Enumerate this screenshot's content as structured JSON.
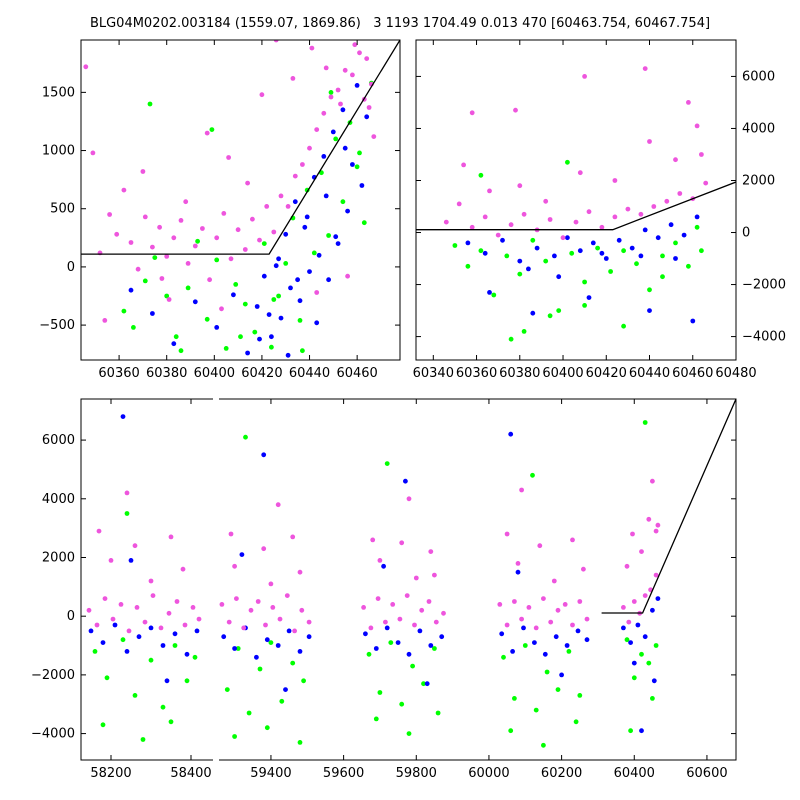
{
  "title": "BLG04M0202.003184 (1559.07, 1869.86)   3 1193 1704.49 0.013 470 [60463.754, 60467.754]",
  "colors": {
    "series_a": "#00ff00",
    "series_b": "#0000ff",
    "series_c": "#ee55dd",
    "model": "#000000"
  },
  "chart_data": [
    {
      "type": "scatter",
      "panel": "top-left zoom",
      "xlim": [
        60344,
        60478
      ],
      "ylim": [
        -800,
        1950
      ],
      "xticks": [
        60360,
        60380,
        60400,
        60420,
        60440,
        60460
      ],
      "yticks": [
        -500,
        0,
        500,
        1000,
        1500
      ],
      "ytick_side": "left",
      "model_line": {
        "x": [
          60344,
          60423,
          60478
        ],
        "y": [
          110,
          110,
          1950
        ]
      },
      "series": [
        {
          "color_key": "series_a",
          "x": [
            60362,
            60366,
            60371,
            60375,
            60380,
            60384,
            60389,
            60393,
            60397,
            60401,
            60405,
            60409,
            60413,
            60417,
            60421,
            60424,
            60427,
            60430,
            60433,
            60436,
            60439,
            60442,
            60445,
            60448,
            60451,
            60454,
            60457,
            60460,
            60463,
            60466,
            60373,
            60386,
            60399,
            60411,
            60425,
            60437,
            60449,
            60461
          ],
          "y": [
            -380,
            -520,
            -120,
            80,
            -250,
            -600,
            -180,
            220,
            -450,
            60,
            -700,
            -150,
            -320,
            -560,
            200,
            -690,
            -250,
            30,
            420,
            -460,
            660,
            120,
            810,
            270,
            1100,
            560,
            1240,
            860,
            380,
            1580,
            1400,
            -720,
            1180,
            -600,
            -280,
            -720,
            1500,
            980
          ]
        },
        {
          "color_key": "series_b",
          "x": [
            60365,
            60374,
            60383,
            60392,
            60401,
            60408,
            60414,
            60418,
            60421,
            60424,
            60426,
            60428,
            60430,
            60432,
            60434,
            60436,
            60438,
            60440,
            60442,
            60444,
            60446,
            60448,
            60450,
            60452,
            60454,
            60456,
            60458,
            60460,
            60462,
            60464,
            60419,
            60423,
            60427,
            60431,
            60435,
            60439,
            60443,
            60447,
            60451,
            60455
          ],
          "y": [
            -200,
            -400,
            -660,
            -300,
            -520,
            -240,
            -740,
            -340,
            -80,
            -600,
            10,
            -440,
            280,
            -180,
            560,
            -290,
            340,
            -40,
            770,
            100,
            950,
            -110,
            1160,
            200,
            1350,
            480,
            880,
            1560,
            700,
            1290,
            -620,
            -410,
            70,
            -760,
            -110,
            430,
            -480,
            610,
            260,
            1020
          ]
        },
        {
          "color_key": "series_c",
          "x": [
            60346,
            60349,
            60352,
            60356,
            60359,
            60362,
            60365,
            60368,
            60371,
            60374,
            60377,
            60380,
            60383,
            60386,
            60389,
            60392,
            60395,
            60398,
            60401,
            60404,
            60407,
            60410,
            60413,
            60416,
            60419,
            60422,
            60425,
            60428,
            60431,
            60434,
            60437,
            60440,
            60443,
            60446,
            60449,
            60452,
            60455,
            60458,
            60461,
            60463,
            60465,
            60467,
            60370,
            60378,
            60388,
            60397,
            60406,
            60414,
            60420,
            60426,
            60433,
            60441,
            60447,
            60453,
            60459,
            60464,
            60466,
            60354,
            60381,
            60403,
            60443,
            60456
          ],
          "y": [
            1720,
            980,
            120,
            450,
            280,
            660,
            210,
            -20,
            430,
            170,
            340,
            90,
            250,
            400,
            30,
            180,
            330,
            -110,
            250,
            460,
            70,
            320,
            150,
            410,
            230,
            520,
            300,
            610,
            520,
            780,
            880,
            1020,
            1180,
            1320,
            1460,
            1520,
            1690,
            1650,
            1840,
            1440,
            1370,
            1120,
            820,
            -100,
            560,
            1150,
            940,
            720,
            1480,
            1950,
            1620,
            1880,
            1710,
            1400,
            1910,
            1790,
            1570,
            -460,
            -280,
            -360,
            -220,
            -80
          ]
        }
      ]
    },
    {
      "type": "scatter",
      "panel": "top-right",
      "xlim": [
        60332,
        60480
      ],
      "ylim": [
        -4900,
        7400
      ],
      "xticks": [
        60340,
        60360,
        60380,
        60400,
        60420,
        60440,
        60460,
        60480
      ],
      "yticks": [
        -4000,
        -2000,
        0,
        2000,
        4000,
        6000
      ],
      "ytick_side": "right",
      "model_line": {
        "x": [
          60332,
          60423,
          60480
        ],
        "y": [
          110,
          110,
          1940
        ]
      },
      "series": [
        {
          "color_key": "series_a",
          "x": [
            60350,
            60356,
            60362,
            60368,
            60374,
            60380,
            60386,
            60392,
            60398,
            60404,
            60410,
            60416,
            60422,
            60428,
            60434,
            60440,
            60446,
            60452,
            60458,
            60464,
            60376,
            60394,
            60410,
            60428,
            60446,
            60462,
            60402,
            60382,
            60362
          ],
          "y": [
            -500,
            -1300,
            -700,
            -2400,
            -900,
            -1600,
            -300,
            -1100,
            -3000,
            -800,
            -1900,
            -600,
            -1500,
            -700,
            -1200,
            -2200,
            -900,
            -400,
            -1300,
            -700,
            -4100,
            -3200,
            -2800,
            -3600,
            -1700,
            200,
            2700,
            -3800,
            2200
          ]
        },
        {
          "color_key": "series_b",
          "x": [
            60356,
            60364,
            60372,
            60380,
            60388,
            60396,
            60402,
            60408,
            60414,
            60420,
            60426,
            60432,
            60438,
            60444,
            60450,
            60456,
            60462,
            60366,
            60384,
            60398,
            60418,
            60436,
            60452,
            60386,
            60412,
            60440,
            60460
          ],
          "y": [
            -400,
            -800,
            -300,
            -1100,
            -600,
            -900,
            -200,
            -700,
            -400,
            -1000,
            -300,
            -600,
            100,
            -200,
            300,
            -100,
            600,
            -2300,
            -1400,
            -1700,
            -800,
            -900,
            -1000,
            -3100,
            -2500,
            -3000,
            -3400
          ]
        },
        {
          "color_key": "series_c",
          "x": [
            60346,
            60352,
            60358,
            60364,
            60370,
            60376,
            60382,
            60388,
            60394,
            60400,
            60406,
            60412,
            60418,
            60424,
            60430,
            60436,
            60442,
            60448,
            60454,
            60460,
            60466,
            60354,
            60366,
            60380,
            60392,
            60408,
            60424,
            60440,
            60452,
            60462,
            60464,
            60358,
            60378,
            60410,
            60438,
            60458
          ],
          "y": [
            400,
            1100,
            200,
            600,
            -100,
            300,
            700,
            100,
            500,
            -200,
            400,
            800,
            200,
            600,
            900,
            700,
            1000,
            1200,
            1500,
            1300,
            1900,
            2600,
            1600,
            1800,
            1200,
            2300,
            2000,
            3500,
            2800,
            4100,
            3000,
            4600,
            4700,
            6000,
            6300,
            5000
          ]
        }
      ]
    },
    {
      "type": "scatter",
      "panel": "bottom full light curve",
      "xlim": [
        58125,
        60680
      ],
      "ylim": [
        -4900,
        7400
      ],
      "xticks": [
        58200,
        58400,
        59400,
        59600,
        59800,
        60000,
        60200,
        60400,
        60600
      ],
      "yticks": [
        -4000,
        -2000,
        0,
        2000,
        4000,
        6000
      ],
      "ytick_side": "left",
      "seasons": [
        [
          58145,
          58420
        ],
        [
          59265,
          59510
        ],
        [
          59655,
          59875
        ],
        [
          60030,
          60275
        ],
        [
          60365,
          60470
        ]
      ],
      "x_gap_after": 58450,
      "x_resume_at": 59235,
      "model_line": {
        "x": [
          60310,
          60423,
          60680
        ],
        "y": [
          110,
          110,
          7400
        ]
      },
      "series": [
        {
          "color_key": "series_a",
          "x": [
            58160,
            58190,
            58230,
            58260,
            58300,
            58330,
            58360,
            58390,
            58410,
            59280,
            59310,
            59340,
            59370,
            59400,
            59430,
            59460,
            59490,
            59670,
            59700,
            59730,
            59760,
            59790,
            59820,
            59850,
            60040,
            60070,
            60100,
            60130,
            60160,
            60190,
            60220,
            60250,
            60380,
            60400,
            60420,
            60440,
            60460,
            58180,
            58280,
            58350,
            59300,
            59390,
            59480,
            59690,
            59780,
            59860,
            60060,
            60150,
            60240,
            60390,
            60450,
            58240,
            59330,
            59720,
            60120,
            60430
          ],
          "y": [
            -1200,
            -2100,
            -800,
            -2700,
            -1500,
            -3100,
            -1000,
            -2200,
            -1400,
            -2500,
            -1100,
            -3300,
            -1800,
            -900,
            -2900,
            -1600,
            -2200,
            -1300,
            -2600,
            -900,
            -3000,
            -1700,
            -2300,
            -1100,
            -1400,
            -2800,
            -1000,
            -3200,
            -1900,
            -2500,
            -1200,
            -2700,
            -800,
            -2100,
            -1300,
            -1600,
            -1000,
            -3700,
            -4200,
            -3600,
            -4100,
            -3800,
            -4300,
            -3500,
            -4000,
            -3300,
            -3900,
            -4400,
            -3600,
            -3900,
            -2800,
            3500,
            6100,
            5200,
            4800,
            6600
          ]
        },
        {
          "color_key": "series_b",
          "x": [
            58150,
            58180,
            58210,
            58240,
            58270,
            58300,
            58330,
            58360,
            58390,
            58415,
            59270,
            59300,
            59330,
            59360,
            59390,
            59420,
            59450,
            59480,
            59505,
            59660,
            59690,
            59720,
            59750,
            59780,
            59810,
            59840,
            59870,
            60035,
            60065,
            60095,
            60125,
            60155,
            60185,
            60215,
            60245,
            60270,
            60370,
            60390,
            60410,
            60430,
            60450,
            60465,
            58250,
            58340,
            59320,
            59440,
            59710,
            59830,
            60080,
            60200,
            60400,
            60455,
            58230,
            59380,
            59770,
            60060,
            60420
          ],
          "y": [
            -500,
            -900,
            -300,
            -1200,
            -700,
            -400,
            -1000,
            -600,
            -1300,
            -500,
            -700,
            -1100,
            -400,
            -1400,
            -800,
            -1000,
            -500,
            -1200,
            -700,
            -600,
            -1100,
            -400,
            -900,
            -1300,
            -500,
            -1000,
            -700,
            -600,
            -1200,
            -400,
            -900,
            -1300,
            -700,
            -1000,
            -500,
            -800,
            -400,
            -900,
            -300,
            -700,
            200,
            600,
            1900,
            -2200,
            2100,
            -2500,
            1700,
            -2300,
            1500,
            -2000,
            -1600,
            -2200,
            6800,
            5500,
            4600,
            6200,
            -3900
          ]
        },
        {
          "color_key": "series_c",
          "x": [
            58145,
            58165,
            58185,
            58205,
            58225,
            58245,
            58265,
            58285,
            58305,
            58325,
            58345,
            58365,
            58385,
            58405,
            58420,
            59265,
            59285,
            59305,
            59325,
            59345,
            59365,
            59385,
            59405,
            59425,
            59445,
            59465,
            59485,
            59505,
            59655,
            59675,
            59695,
            59715,
            59735,
            59755,
            59775,
            59795,
            59815,
            59835,
            59855,
            59875,
            60030,
            60050,
            60070,
            60090,
            60110,
            60130,
            60150,
            60170,
            60190,
            60210,
            60230,
            60250,
            60270,
            60370,
            60385,
            60400,
            60415,
            60430,
            60445,
            60460,
            58200,
            58300,
            58380,
            59300,
            59400,
            59480,
            59700,
            59800,
            59850,
            60080,
            60180,
            60260,
            60380,
            60420,
            60460,
            58170,
            58260,
            58350,
            59290,
            59380,
            59460,
            59680,
            59760,
            59840,
            60050,
            60140,
            60230,
            60395,
            60440,
            60465,
            58240,
            59420,
            59780,
            60090,
            60450
          ],
          "y": [
            200,
            -300,
            600,
            -100,
            400,
            -500,
            300,
            -200,
            700,
            -400,
            100,
            500,
            -300,
            300,
            -100,
            400,
            -200,
            600,
            -400,
            200,
            500,
            -300,
            300,
            -100,
            700,
            -500,
            200,
            -200,
            300,
            -400,
            600,
            -200,
            400,
            -100,
            700,
            -300,
            200,
            500,
            -200,
            100,
            400,
            -300,
            500,
            -100,
            300,
            -400,
            600,
            -200,
            200,
            400,
            -300,
            500,
            -100,
            300,
            -200,
            500,
            100,
            700,
            900,
            1400,
            1900,
            1200,
            1600,
            1700,
            1100,
            1500,
            1900,
            1300,
            1400,
            1800,
            1200,
            1600,
            1700,
            2200,
            2900,
            2900,
            2400,
            2700,
            2800,
            2300,
            2700,
            2600,
            2500,
            2200,
            2800,
            2400,
            2600,
            2800,
            3300,
            3100,
            4200,
            3800,
            4000,
            4300,
            4600
          ]
        }
      ]
    }
  ]
}
